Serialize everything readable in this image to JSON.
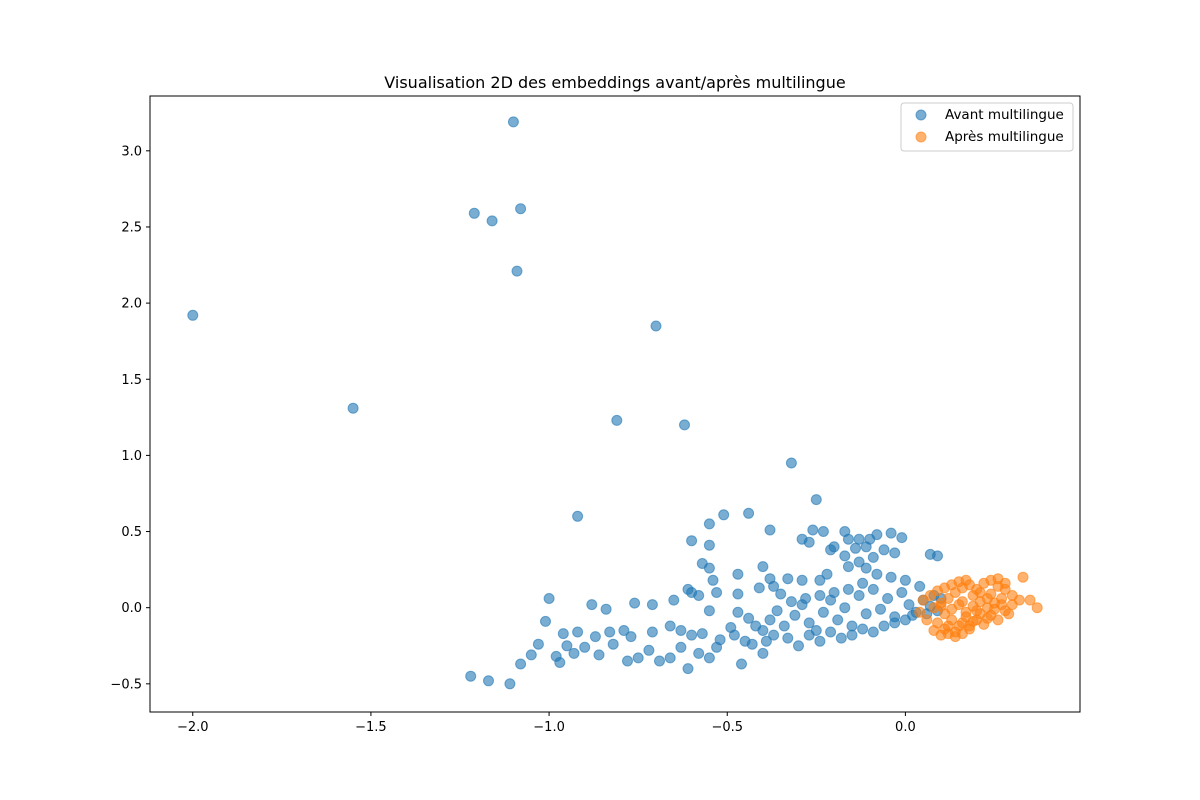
{
  "chart_data": {
    "type": "scatter",
    "title": "Visualisation 2D des embeddings avant/après multilingue",
    "xlabel": "",
    "ylabel": "",
    "xlim": [
      -2.12,
      0.49
    ],
    "ylim": [
      -0.685,
      3.36
    ],
    "xticks": [
      {
        "value": -2.0,
        "label": "−2.0"
      },
      {
        "value": -1.5,
        "label": "−1.5"
      },
      {
        "value": -1.0,
        "label": "−1.0"
      },
      {
        "value": -0.5,
        "label": "−0.5"
      },
      {
        "value": 0.0,
        "label": "0.0"
      }
    ],
    "yticks": [
      {
        "value": -0.5,
        "label": "−0.5"
      },
      {
        "value": 0.0,
        "label": "0.0"
      },
      {
        "value": 0.5,
        "label": "0.5"
      },
      {
        "value": 1.0,
        "label": "1.0"
      },
      {
        "value": 1.5,
        "label": "1.5"
      },
      {
        "value": 2.0,
        "label": "2.0"
      },
      {
        "value": 2.5,
        "label": "2.5"
      },
      {
        "value": 3.0,
        "label": "3.0"
      }
    ],
    "grid": false,
    "legend_position": "top-right",
    "series": [
      {
        "name": "Avant multilingue",
        "color": "#1f77b4",
        "points": [
          [
            -2.0,
            1.92
          ],
          [
            -1.55,
            1.31
          ],
          [
            -1.21,
            2.59
          ],
          [
            -1.16,
            2.54
          ],
          [
            -1.1,
            3.19
          ],
          [
            -1.08,
            2.62
          ],
          [
            -1.09,
            2.21
          ],
          [
            -0.7,
            1.85
          ],
          [
            -0.81,
            1.23
          ],
          [
            -0.62,
            1.2
          ],
          [
            -0.32,
            0.95
          ],
          [
            -0.92,
            0.6
          ],
          [
            -0.25,
            0.71
          ],
          [
            -0.51,
            0.61
          ],
          [
            -0.44,
            0.62
          ],
          [
            -0.55,
            0.55
          ],
          [
            -0.38,
            0.51
          ],
          [
            -0.26,
            0.51
          ],
          [
            -0.23,
            0.5
          ],
          [
            -0.29,
            0.45
          ],
          [
            -0.27,
            0.43
          ],
          [
            -0.17,
            0.5
          ],
          [
            -0.16,
            0.45
          ],
          [
            -0.13,
            0.45
          ],
          [
            -0.1,
            0.45
          ],
          [
            -0.08,
            0.48
          ],
          [
            -0.04,
            0.49
          ],
          [
            -0.01,
            0.46
          ],
          [
            -0.6,
            0.44
          ],
          [
            -0.55,
            0.41
          ],
          [
            -0.21,
            0.38
          ],
          [
            -0.2,
            0.4
          ],
          [
            -0.14,
            0.39
          ],
          [
            -0.11,
            0.4
          ],
          [
            -0.06,
            0.38
          ],
          [
            -0.03,
            0.36
          ],
          [
            0.07,
            0.35
          ],
          [
            0.09,
            0.34
          ],
          [
            -0.17,
            0.34
          ],
          [
            -0.09,
            0.33
          ],
          [
            -0.13,
            0.3
          ],
          [
            -0.57,
            0.29
          ],
          [
            -0.55,
            0.26
          ],
          [
            -0.4,
            0.27
          ],
          [
            -0.47,
            0.22
          ],
          [
            -0.11,
            0.26
          ],
          [
            -0.16,
            0.27
          ],
          [
            -0.33,
            0.19
          ],
          [
            -0.29,
            0.18
          ],
          [
            -0.24,
            0.18
          ],
          [
            -0.22,
            0.22
          ],
          [
            -0.61,
            0.12
          ],
          [
            -0.58,
            0.08
          ],
          [
            -0.53,
            0.1
          ],
          [
            -0.47,
            0.09
          ],
          [
            -0.41,
            0.13
          ],
          [
            -0.38,
            0.19
          ],
          [
            -0.37,
            0.14
          ],
          [
            -0.6,
            0.1
          ],
          [
            -0.54,
            0.18
          ],
          [
            -1.0,
            0.06
          ],
          [
            -0.88,
            0.02
          ],
          [
            -0.84,
            -0.01
          ],
          [
            -0.76,
            0.03
          ],
          [
            -0.71,
            0.02
          ],
          [
            -0.65,
            0.05
          ],
          [
            -0.55,
            -0.02
          ],
          [
            -0.47,
            -0.03
          ],
          [
            -1.01,
            -0.09
          ],
          [
            -0.96,
            -0.17
          ],
          [
            -0.92,
            -0.16
          ],
          [
            -0.87,
            -0.19
          ],
          [
            -0.83,
            -0.16
          ],
          [
            -0.79,
            -0.15
          ],
          [
            -0.77,
            -0.19
          ],
          [
            -0.71,
            -0.16
          ],
          [
            -0.66,
            -0.12
          ],
          [
            -0.63,
            -0.15
          ],
          [
            -0.6,
            -0.18
          ],
          [
            -0.57,
            -0.17
          ],
          [
            -0.52,
            -0.21
          ],
          [
            -0.48,
            -0.18
          ],
          [
            -0.45,
            -0.22
          ],
          [
            -1.03,
            -0.24
          ],
          [
            -0.98,
            -0.32
          ],
          [
            -0.95,
            -0.25
          ],
          [
            -0.93,
            -0.3
          ],
          [
            -0.9,
            -0.26
          ],
          [
            -0.86,
            -0.31
          ],
          [
            -0.82,
            -0.24
          ],
          [
            -0.78,
            -0.35
          ],
          [
            -0.75,
            -0.33
          ],
          [
            -0.72,
            -0.28
          ],
          [
            -0.69,
            -0.35
          ],
          [
            -0.66,
            -0.33
          ],
          [
            -0.63,
            -0.26
          ],
          [
            -0.61,
            -0.4
          ],
          [
            -0.58,
            -0.3
          ],
          [
            -0.55,
            -0.33
          ],
          [
            -0.53,
            -0.26
          ],
          [
            -0.46,
            -0.37
          ],
          [
            -0.43,
            -0.24
          ],
          [
            -0.4,
            -0.3
          ],
          [
            -1.22,
            -0.45
          ],
          [
            -1.17,
            -0.48
          ],
          [
            -1.11,
            -0.5
          ],
          [
            -1.08,
            -0.37
          ],
          [
            -1.05,
            -0.31
          ],
          [
            -0.97,
            -0.36
          ],
          [
            -0.4,
            -0.15
          ],
          [
            -0.38,
            -0.08
          ],
          [
            -0.36,
            -0.02
          ],
          [
            -0.34,
            -0.12
          ],
          [
            -0.31,
            -0.05
          ],
          [
            -0.29,
            0.02
          ],
          [
            -0.27,
            -0.1
          ],
          [
            -0.25,
            -0.15
          ],
          [
            -0.23,
            -0.03
          ],
          [
            -0.21,
            0.05
          ],
          [
            -0.19,
            -0.08
          ],
          [
            -0.17,
            0.0
          ],
          [
            -0.15,
            -0.12
          ],
          [
            -0.13,
            0.08
          ],
          [
            -0.11,
            -0.04
          ],
          [
            -0.09,
            0.12
          ],
          [
            -0.07,
            -0.01
          ],
          [
            -0.05,
            0.06
          ],
          [
            -0.03,
            -0.06
          ],
          [
            -0.01,
            0.1
          ],
          [
            0.01,
            0.02
          ],
          [
            0.03,
            -0.03
          ],
          [
            0.05,
            0.05
          ],
          [
            0.07,
            0.01
          ],
          [
            0.09,
            -0.02
          ],
          [
            -0.33,
            -0.2
          ],
          [
            -0.3,
            -0.25
          ],
          [
            -0.27,
            -0.18
          ],
          [
            -0.24,
            -0.22
          ],
          [
            -0.21,
            -0.16
          ],
          [
            -0.18,
            -0.2
          ],
          [
            -0.15,
            -0.18
          ],
          [
            -0.12,
            -0.14
          ],
          [
            -0.09,
            -0.16
          ],
          [
            -0.06,
            -0.12
          ],
          [
            -0.03,
            -0.1
          ],
          [
            0.0,
            -0.08
          ],
          [
            0.02,
            -0.05
          ],
          [
            0.06,
            -0.04
          ],
          [
            0.08,
            0.08
          ],
          [
            0.1,
            0.06
          ],
          [
            0.04,
            0.14
          ],
          [
            0.0,
            0.18
          ],
          [
            -0.04,
            0.2
          ],
          [
            -0.08,
            0.22
          ],
          [
            -0.12,
            0.16
          ],
          [
            -0.16,
            0.12
          ],
          [
            -0.2,
            0.1
          ],
          [
            -0.24,
            0.08
          ],
          [
            -0.28,
            0.06
          ],
          [
            -0.32,
            0.04
          ],
          [
            -0.35,
            0.09
          ],
          [
            -0.37,
            -0.18
          ],
          [
            -0.39,
            -0.22
          ],
          [
            -0.42,
            -0.12
          ],
          [
            -0.44,
            -0.07
          ],
          [
            -0.49,
            -0.13
          ]
        ]
      },
      {
        "name": "Après multilingue",
        "color": "#ff7f0e",
        "points": [
          [
            0.04,
            -0.03
          ],
          [
            0.06,
            -0.08
          ],
          [
            0.08,
            -0.15
          ],
          [
            0.1,
            -0.18
          ],
          [
            0.12,
            -0.12
          ],
          [
            0.14,
            -0.16
          ],
          [
            0.16,
            -0.1
          ],
          [
            0.18,
            -0.14
          ],
          [
            0.2,
            -0.08
          ],
          [
            0.22,
            -0.11
          ],
          [
            0.24,
            -0.05
          ],
          [
            0.26,
            -0.08
          ],
          [
            0.28,
            -0.02
          ],
          [
            0.3,
            0.02
          ],
          [
            0.08,
            0.0
          ],
          [
            0.1,
            0.03
          ],
          [
            0.12,
            0.06
          ],
          [
            0.14,
            0.1
          ],
          [
            0.16,
            0.13
          ],
          [
            0.18,
            0.15
          ],
          [
            0.2,
            0.12
          ],
          [
            0.22,
            0.16
          ],
          [
            0.24,
            0.18
          ],
          [
            0.26,
            0.14
          ],
          [
            0.28,
            0.12
          ],
          [
            0.3,
            0.08
          ],
          [
            0.32,
            0.05
          ],
          [
            0.35,
            0.05
          ],
          [
            0.37,
            0.0
          ],
          [
            0.33,
            0.2
          ],
          [
            0.11,
            -0.04
          ],
          [
            0.13,
            -0.01
          ],
          [
            0.15,
            0.02
          ],
          [
            0.17,
            -0.03
          ],
          [
            0.19,
            0.01
          ],
          [
            0.21,
            0.04
          ],
          [
            0.23,
            0.0
          ],
          [
            0.25,
            0.03
          ],
          [
            0.27,
            0.06
          ],
          [
            0.29,
            -0.04
          ],
          [
            0.09,
            -0.1
          ],
          [
            0.11,
            -0.14
          ],
          [
            0.13,
            -0.08
          ],
          [
            0.15,
            -0.12
          ],
          [
            0.17,
            -0.06
          ],
          [
            0.19,
            -0.09
          ],
          [
            0.21,
            -0.04
          ],
          [
            0.23,
            -0.07
          ],
          [
            0.25,
            -0.01
          ],
          [
            0.27,
            0.02
          ],
          [
            0.05,
            0.05
          ],
          [
            0.07,
            0.08
          ],
          [
            0.09,
            0.11
          ],
          [
            0.11,
            0.13
          ],
          [
            0.13,
            0.15
          ],
          [
            0.15,
            0.17
          ],
          [
            0.17,
            0.18
          ],
          [
            0.19,
            0.08
          ],
          [
            0.21,
            0.1
          ],
          [
            0.23,
            0.06
          ],
          [
            0.12,
            -0.17
          ],
          [
            0.14,
            -0.19
          ],
          [
            0.16,
            -0.17
          ],
          [
            0.18,
            -0.12
          ],
          [
            0.1,
            0.01
          ],
          [
            0.16,
            0.04
          ],
          [
            0.2,
            -0.02
          ],
          [
            0.24,
            0.09
          ],
          [
            0.28,
            0.16
          ],
          [
            0.26,
            0.19
          ]
        ]
      }
    ]
  }
}
